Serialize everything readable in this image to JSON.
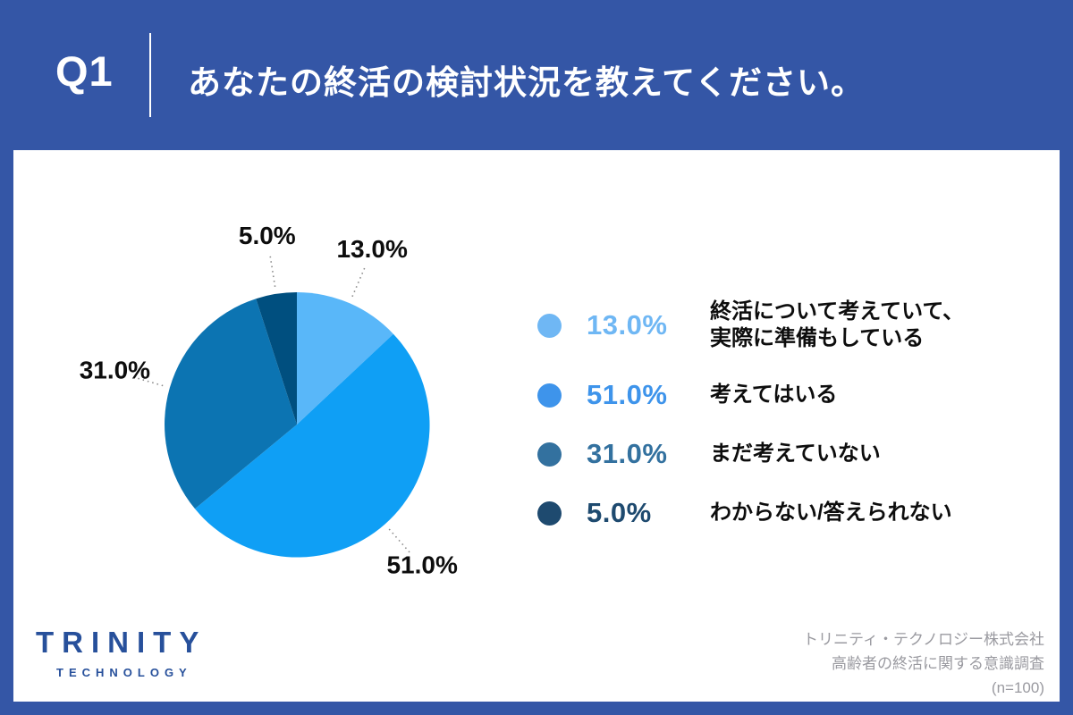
{
  "header": {
    "question_no": "Q1",
    "title": "あなたの終活の検討状況を教えてください。"
  },
  "colors": {
    "header_bg": "#3456A6",
    "card_bg": "#FFFFFF",
    "pie_label_text": "#0D0D0D",
    "leader_line": "#8A8A8A",
    "logo_blue": "#27509B",
    "source_text": "#9A9AA0"
  },
  "chart_data": {
    "type": "pie",
    "title": "あなたの終活の検討状況を教えてください。",
    "start_angle": "top",
    "direction": "clockwise",
    "sample_size_note": "(n=100)",
    "legend_position": "right",
    "segments": [
      {
        "label": "終活について考えていて、実際に準備もしている",
        "label_lines": [
          "終活について考えていて、",
          "実際に準備もしている"
        ],
        "value": 13.0,
        "display": "13.0%",
        "slice_color": "#59B7F9",
        "legend_color": "#6FB7F4"
      },
      {
        "label": "考えてはいる",
        "label_lines": [
          "考えてはいる"
        ],
        "value": 51.0,
        "display": "51.0%",
        "slice_color": "#0F9FF5",
        "legend_color": "#3E94EB"
      },
      {
        "label": "まだ考えていない",
        "label_lines": [
          "まだ考えていない"
        ],
        "value": 31.0,
        "display": "31.0%",
        "slice_color": "#0C74B2",
        "legend_color": "#33719F"
      },
      {
        "label": "わからない/答えられない",
        "label_lines": [
          "わからない/答えられない"
        ],
        "value": 5.0,
        "display": "5.0%",
        "slice_color": "#004F7F",
        "legend_color": "#1E4A6F"
      }
    ]
  },
  "footer": {
    "logo_primary": "TRINITY",
    "logo_secondary": "TECHNOLOGY",
    "source_lines": [
      "トリニティ・テクノロジー株式会社",
      "高齢者の終活に関する意識調査",
      "(n=100)"
    ]
  }
}
